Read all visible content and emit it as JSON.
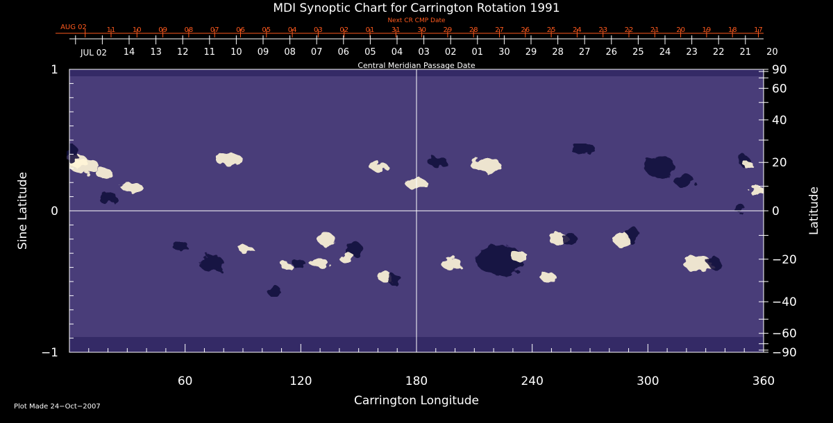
{
  "chart_data": {
    "type": "heatmap",
    "title": "MDI Synoptic Chart for Carrington Rotation 1991",
    "xlabel": "Carrington Longitude",
    "ylabel_left": "Sine Latitude",
    "ylabel_right": "Latitude",
    "xlim": [
      0,
      360
    ],
    "ylim": [
      -1,
      1
    ],
    "x_ticks": [
      "60",
      "120",
      "180",
      "240",
      "300",
      "360"
    ],
    "x_tick_values": [
      60,
      120,
      180,
      240,
      300,
      360
    ],
    "y_ticks_left": [
      {
        "value": 1,
        "label": "1"
      },
      {
        "value": 0,
        "label": "0"
      },
      {
        "value": -1,
        "label": "−1"
      }
    ],
    "y_ticks_right": [
      {
        "value": 90,
        "label": "90"
      },
      {
        "value": 60,
        "label": "60"
      },
      {
        "value": 40,
        "label": "40"
      },
      {
        "value": 20,
        "label": "20"
      },
      {
        "value": 0,
        "label": "0"
      },
      {
        "value": -20,
        "label": "−20"
      },
      {
        "value": -40,
        "label": "−40"
      },
      {
        "value": -60,
        "label": "−60"
      },
      {
        "value": -90,
        "label": "−90"
      }
    ],
    "top_axis_cmp": {
      "label": "Central Meridian Passage Date",
      "first_label": "JUL 02",
      "labels": [
        "14",
        "13",
        "12",
        "11",
        "10",
        "09",
        "08",
        "07",
        "06",
        "05",
        "04",
        "03",
        "02",
        "01",
        "30",
        "29",
        "28",
        "27",
        "26",
        "25",
        "24",
        "23",
        "22",
        "21",
        "20"
      ]
    },
    "top_axis_next": {
      "label": "Next CR CMP Date",
      "first_label": "AUG 02",
      "labels": [
        "11",
        "10",
        "09",
        "08",
        "07",
        "06",
        "05",
        "04",
        "03",
        "02",
        "01",
        "31",
        "30",
        "29",
        "28",
        "27",
        "26",
        "25",
        "24",
        "23",
        "22",
        "21",
        "20",
        "19",
        "18",
        "17"
      ]
    },
    "colormap": [
      "#0c0c3a",
      "#2b0a3d",
      "#8a1400",
      "#d2360a",
      "#f06a12",
      "#fdb446",
      "#ffffff"
    ],
    "grid": "crosshair at longitude 180 and sine latitude 0",
    "legend": "none"
  },
  "footer": {
    "plot_made": "Plot Made 24−Oct−2007"
  },
  "colors": {
    "background": "#000000",
    "axis": "#ffffff",
    "next_cr_axis": "#ff5a1e"
  }
}
